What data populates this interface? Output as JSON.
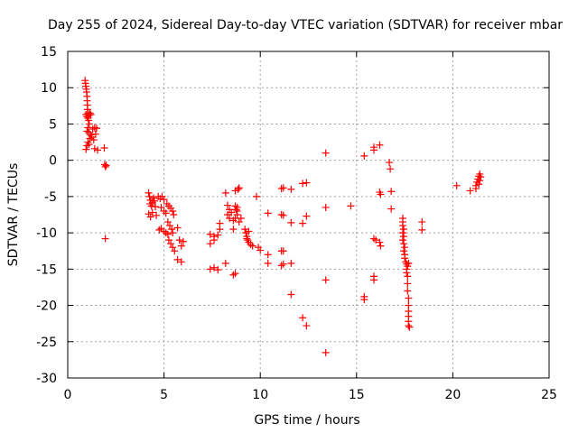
{
  "chart_data": {
    "type": "scatter",
    "title": "Day 255 of 2024, Sidereal Day-to-day VTEC variation (SDTVAR) for receiver mbar",
    "xlabel": "GPS time / hours",
    "ylabel": "SDTVAR / TECUs",
    "xlim": [
      0,
      25
    ],
    "ylim": [
      -30,
      15
    ],
    "xticks": [
      "0",
      "5",
      "10",
      "15",
      "20",
      "25"
    ],
    "yticks": [
      "15",
      "10",
      "5",
      "0",
      "-5",
      "-10",
      "-15",
      "-20",
      "-25",
      "-30"
    ],
    "grid": true,
    "marker": "+",
    "colors": {
      "points": "#ff0000",
      "grid": "#a0a0a0",
      "axes": "#000000"
    },
    "series": [
      {
        "points": [
          [
            0.9,
            11.0
          ],
          [
            0.92,
            10.6
          ],
          [
            0.94,
            10.2
          ],
          [
            0.96,
            9.8
          ],
          [
            0.98,
            9.4
          ],
          [
            1.0,
            8.8
          ],
          [
            1.01,
            8.2
          ],
          [
            1.02,
            7.6
          ],
          [
            1.03,
            7.0
          ],
          [
            1.05,
            6.5
          ],
          [
            0.95,
            6.3
          ],
          [
            1.0,
            6.0
          ],
          [
            1.05,
            5.8
          ],
          [
            1.1,
            6.2
          ],
          [
            1.15,
            6.5
          ],
          [
            1.2,
            6.3
          ],
          [
            1.08,
            5.5
          ],
          [
            1.12,
            5.0
          ],
          [
            1.05,
            4.5
          ],
          [
            1.0,
            4.0
          ],
          [
            1.1,
            3.8
          ],
          [
            1.2,
            3.5
          ],
          [
            1.15,
            3.0
          ],
          [
            1.05,
            2.5
          ],
          [
            1.0,
            2.0
          ],
          [
            0.95,
            1.5
          ],
          [
            1.1,
            2.2
          ],
          [
            1.25,
            3.2
          ],
          [
            1.3,
            4.3
          ],
          [
            1.4,
            4.5
          ],
          [
            1.5,
            4.4
          ],
          [
            1.45,
            3.6
          ],
          [
            1.35,
            2.8
          ],
          [
            1.4,
            1.6
          ],
          [
            1.55,
            1.4
          ],
          [
            1.9,
            1.7
          ],
          [
            1.92,
            -0.6
          ],
          [
            1.96,
            -0.9
          ],
          [
            2.0,
            -0.7
          ],
          [
            1.95,
            -10.8
          ],
          [
            4.2,
            -4.5
          ],
          [
            4.25,
            -5.0
          ],
          [
            4.3,
            -5.5
          ],
          [
            4.28,
            -6.0
          ],
          [
            4.35,
            -6.3
          ],
          [
            4.4,
            -5.8
          ],
          [
            4.45,
            -5.2
          ],
          [
            4.5,
            -5.6
          ],
          [
            4.55,
            -6.4
          ],
          [
            4.4,
            -7.2
          ],
          [
            4.6,
            -7.6
          ],
          [
            4.2,
            -7.4
          ],
          [
            4.3,
            -7.8
          ],
          [
            4.7,
            -5.0
          ],
          [
            4.8,
            -5.3
          ],
          [
            4.9,
            -5.0
          ],
          [
            5.0,
            -5.4
          ],
          [
            4.85,
            -6.5
          ],
          [
            5.0,
            -7.0
          ],
          [
            5.1,
            -7.3
          ],
          [
            4.75,
            -9.6
          ],
          [
            4.85,
            -9.4
          ],
          [
            5.0,
            -9.8
          ],
          [
            5.1,
            -10.0
          ],
          [
            5.2,
            -10.2
          ],
          [
            5.15,
            -6.0
          ],
          [
            5.25,
            -6.3
          ],
          [
            5.35,
            -6.6
          ],
          [
            5.45,
            -7.0
          ],
          [
            5.5,
            -7.5
          ],
          [
            5.2,
            -8.5
          ],
          [
            5.3,
            -9.0
          ],
          [
            5.4,
            -9.5
          ],
          [
            5.45,
            -10.0
          ],
          [
            5.25,
            -11.0
          ],
          [
            5.35,
            -11.5
          ],
          [
            5.45,
            -12.0
          ],
          [
            5.55,
            -12.5
          ],
          [
            5.7,
            -9.3
          ],
          [
            5.8,
            -11.0
          ],
          [
            5.9,
            -11.8
          ],
          [
            6.0,
            -11.2
          ],
          [
            5.7,
            -13.7
          ],
          [
            5.9,
            -14.0
          ],
          [
            7.4,
            -10.2
          ],
          [
            7.4,
            -11.5
          ],
          [
            7.6,
            -10.5
          ],
          [
            7.6,
            -11.0
          ],
          [
            7.8,
            -10.3
          ],
          [
            7.9,
            -9.5
          ],
          [
            7.9,
            -8.7
          ],
          [
            7.4,
            -15.0
          ],
          [
            7.6,
            -14.8
          ],
          [
            7.8,
            -15.1
          ],
          [
            8.2,
            -4.5
          ],
          [
            8.3,
            -6.2
          ],
          [
            8.4,
            -6.8
          ],
          [
            8.5,
            -7.2
          ],
          [
            8.3,
            -7.5
          ],
          [
            8.4,
            -8.0
          ],
          [
            8.6,
            -8.3
          ],
          [
            8.7,
            -8.0
          ],
          [
            8.8,
            -7.5
          ],
          [
            8.75,
            -6.8
          ],
          [
            8.7,
            -6.3
          ],
          [
            8.8,
            -7.0
          ],
          [
            8.85,
            -4.0
          ],
          [
            8.9,
            -3.8
          ],
          [
            8.7,
            -4.2
          ],
          [
            8.6,
            -9.5
          ],
          [
            8.2,
            -14.2
          ],
          [
            8.6,
            -15.8
          ],
          [
            8.7,
            -15.6
          ],
          [
            8.8,
            -6.5
          ],
          [
            8.9,
            -8.5
          ],
          [
            9.0,
            -8.0
          ],
          [
            9.2,
            -9.5
          ],
          [
            9.25,
            -10.0
          ],
          [
            9.3,
            -10.5
          ],
          [
            9.35,
            -11.0
          ],
          [
            9.4,
            -11.3
          ],
          [
            9.5,
            -11.6
          ],
          [
            9.6,
            -11.8
          ],
          [
            9.3,
            -10.8
          ],
          [
            9.4,
            -9.8
          ],
          [
            9.8,
            -5.0
          ],
          [
            9.9,
            -12.0
          ],
          [
            10.0,
            -12.4
          ],
          [
            10.4,
            -7.3
          ],
          [
            10.4,
            -13.0
          ],
          [
            10.4,
            -14.2
          ],
          [
            11.1,
            -3.9
          ],
          [
            11.2,
            -3.8
          ],
          [
            11.1,
            -7.5
          ],
          [
            11.2,
            -7.6
          ],
          [
            11.1,
            -12.5
          ],
          [
            11.2,
            -12.5
          ],
          [
            11.1,
            -14.5
          ],
          [
            11.2,
            -14.3
          ],
          [
            11.6,
            -4.0
          ],
          [
            11.6,
            -8.6
          ],
          [
            11.6,
            -14.2
          ],
          [
            11.6,
            -18.5
          ],
          [
            12.2,
            -3.2
          ],
          [
            12.4,
            -3.1
          ],
          [
            12.2,
            -8.7
          ],
          [
            12.4,
            -7.7
          ],
          [
            12.2,
            -21.7
          ],
          [
            12.4,
            -22.8
          ],
          [
            13.4,
            1.0
          ],
          [
            13.4,
            -6.5
          ],
          [
            13.4,
            -16.5
          ],
          [
            13.4,
            -26.5
          ],
          [
            14.7,
            -6.3
          ],
          [
            15.4,
            0.6
          ],
          [
            15.4,
            -18.8
          ],
          [
            15.4,
            -19.2
          ],
          [
            15.9,
            1.4
          ],
          [
            15.9,
            1.8
          ],
          [
            16.2,
            2.1
          ],
          [
            15.9,
            -10.8
          ],
          [
            16.0,
            -11.0
          ],
          [
            16.2,
            -11.3
          ],
          [
            16.25,
            -11.8
          ],
          [
            16.2,
            -4.4
          ],
          [
            16.25,
            -4.7
          ],
          [
            15.9,
            -16.0
          ],
          [
            15.9,
            -16.5
          ],
          [
            16.7,
            -0.3
          ],
          [
            16.75,
            -1.2
          ],
          [
            16.8,
            -4.3
          ],
          [
            16.8,
            -6.7
          ],
          [
            17.4,
            -8.0
          ],
          [
            17.4,
            -8.5
          ],
          [
            17.4,
            -9.0
          ],
          [
            17.45,
            -9.5
          ],
          [
            17.4,
            -10.0
          ],
          [
            17.45,
            -10.5
          ],
          [
            17.4,
            -11.0
          ],
          [
            17.45,
            -11.5
          ],
          [
            17.5,
            -12.0
          ],
          [
            17.45,
            -12.5
          ],
          [
            17.5,
            -13.0
          ],
          [
            17.5,
            -13.5
          ],
          [
            17.55,
            -14.0
          ],
          [
            17.6,
            -14.3
          ],
          [
            17.65,
            -14.6
          ],
          [
            17.7,
            -14.2
          ],
          [
            17.6,
            -15.0
          ],
          [
            17.6,
            -15.5
          ],
          [
            17.65,
            -16.0
          ],
          [
            17.65,
            -17.0
          ],
          [
            17.65,
            -18.0
          ],
          [
            17.7,
            -19.0
          ],
          [
            17.7,
            -20.0
          ],
          [
            17.7,
            -20.8
          ],
          [
            17.7,
            -21.5
          ],
          [
            17.7,
            -22.2
          ],
          [
            17.7,
            -22.8
          ],
          [
            17.75,
            -23.0
          ],
          [
            18.4,
            -8.5
          ],
          [
            18.4,
            -9.6
          ],
          [
            20.2,
            -3.5
          ],
          [
            20.9,
            -4.2
          ],
          [
            21.2,
            -3.9
          ],
          [
            21.2,
            -3.5
          ],
          [
            21.25,
            -3.0
          ],
          [
            21.3,
            -2.6
          ],
          [
            21.35,
            -2.2
          ],
          [
            21.4,
            -1.9
          ],
          [
            21.45,
            -2.3
          ],
          [
            21.4,
            -2.8
          ],
          [
            21.35,
            -3.3
          ]
        ]
      }
    ]
  }
}
